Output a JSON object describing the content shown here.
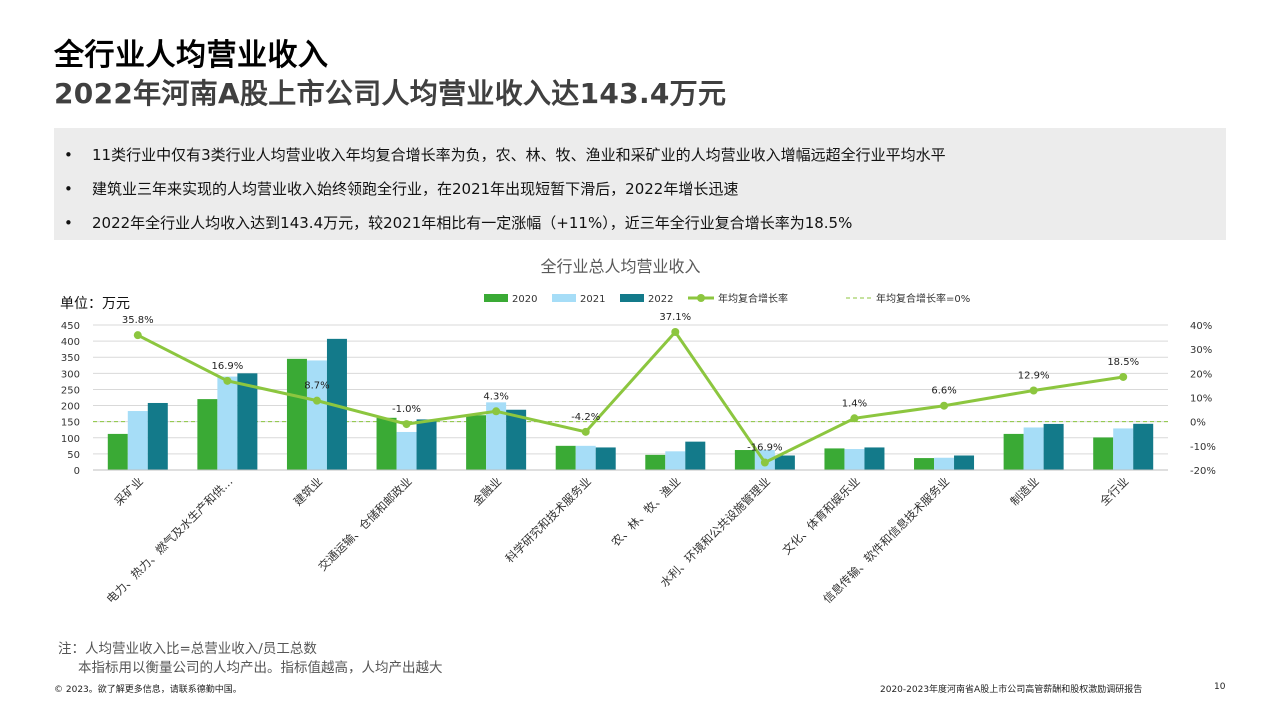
{
  "header": {
    "title": "全行业人均营业收入",
    "subtitle": "2022年河南A股上市公司人均营业收入达143.4万元"
  },
  "summary": {
    "bullet_symbol": "•",
    "items": [
      "11类行业中仅有3类行业人均营业收入年均复合增长率为负，农、林、牧、渔业和采矿业的人均营业收入增幅远超全行业平均水平",
      "建筑业三年来实现的人均营业收入始终领跑全行业，在2021年出现短暂下滑后，2022年增长迅速",
      "2022年全行业人均收入达到143.4万元，较2021年相比有一定涨幅（+11%），近三年全行业复合增长率为18.5%"
    ]
  },
  "chart_data": {
    "type": "bar",
    "title": "全行业总人均营业收入",
    "unit_label": "单位：万元",
    "categories": [
      "采矿业",
      "电力、热力、燃气及水生产和供…",
      "建筑业",
      "交通运输、仓储和邮政业",
      "金融业",
      "科学研究和技术服务业",
      "农、林、牧、渔业",
      "水利、环境和公共设施管理业",
      "文化、体育和娱乐业",
      "信息传输、软件和信息技术服务业",
      "制造业",
      "全行业"
    ],
    "series": [
      {
        "name": "2020",
        "type": "bar",
        "axis": "left",
        "color": "#3aaa35",
        "values": [
          112,
          220,
          345,
          162,
          170,
          75,
          47,
          62,
          67,
          37,
          112,
          101
        ]
      },
      {
        "name": "2021",
        "type": "bar",
        "axis": "left",
        "color": "#a6ddf7",
        "values": [
          183,
          290,
          340,
          118,
          210,
          75,
          58,
          62,
          65,
          38,
          132,
          129
        ]
      },
      {
        "name": "2022",
        "type": "bar",
        "axis": "left",
        "color": "#137a8a",
        "values": [
          208,
          300,
          407,
          157,
          187,
          70,
          88,
          45,
          70,
          45,
          143,
          143.4
        ]
      },
      {
        "name": "年均复合增长率",
        "type": "line",
        "axis": "right",
        "color": "#8cc63f",
        "values": [
          35.8,
          16.9,
          8.7,
          -1.0,
          4.3,
          -4.2,
          37.1,
          -16.9,
          1.4,
          6.6,
          12.9,
          18.5
        ],
        "labels": [
          "35.8%",
          "16.9%",
          "8.7%",
          "-1.0%",
          "4.3%",
          "-4.2%",
          "37.1%",
          "-16.9%",
          "1.4%",
          "6.6%",
          "12.9%",
          "18.5%"
        ]
      }
    ],
    "reference_line": {
      "name": "年均复合增长率=0%",
      "value": 0,
      "axis": "right",
      "color": "#8cc63f"
    },
    "ylim_left": [
      0,
      450
    ],
    "yticks_left": [
      "0",
      "50",
      "100",
      "150",
      "200",
      "250",
      "300",
      "350",
      "400",
      "450"
    ],
    "ylim_right": [
      -20,
      40
    ],
    "yticks_right": [
      "-20%",
      "-10%",
      "0%",
      "10%",
      "20%",
      "30%",
      "40%"
    ],
    "legend_position": "top"
  },
  "notes": {
    "line1": "注：人均营业收入比=总营业收入/员工总数",
    "line2": "本指标用以衡量公司的人均产出。指标值越高，人均产出越大"
  },
  "footer": {
    "left": "© 2023。欲了解更多信息，请联系德勤中国。",
    "right": "2020-2023年度河南省A股上市公司高管薪酬和股权激励调研报告",
    "page": "10"
  }
}
